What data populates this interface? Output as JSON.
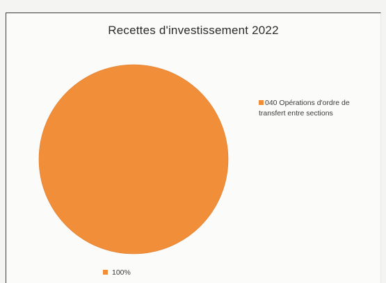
{
  "chart_data": {
    "type": "pie",
    "title": "Recettes d'investissement 2022",
    "categories": [
      "040 Opérations d'ordre de transfert entre sections"
    ],
    "values": [
      100
    ],
    "data_labels": [
      "100%"
    ],
    "colors": [
      "#f08e3a"
    ],
    "legend_placement": "right"
  },
  "colors": {
    "slice": "#f08e3a",
    "slice_edge": "#e07c28"
  }
}
